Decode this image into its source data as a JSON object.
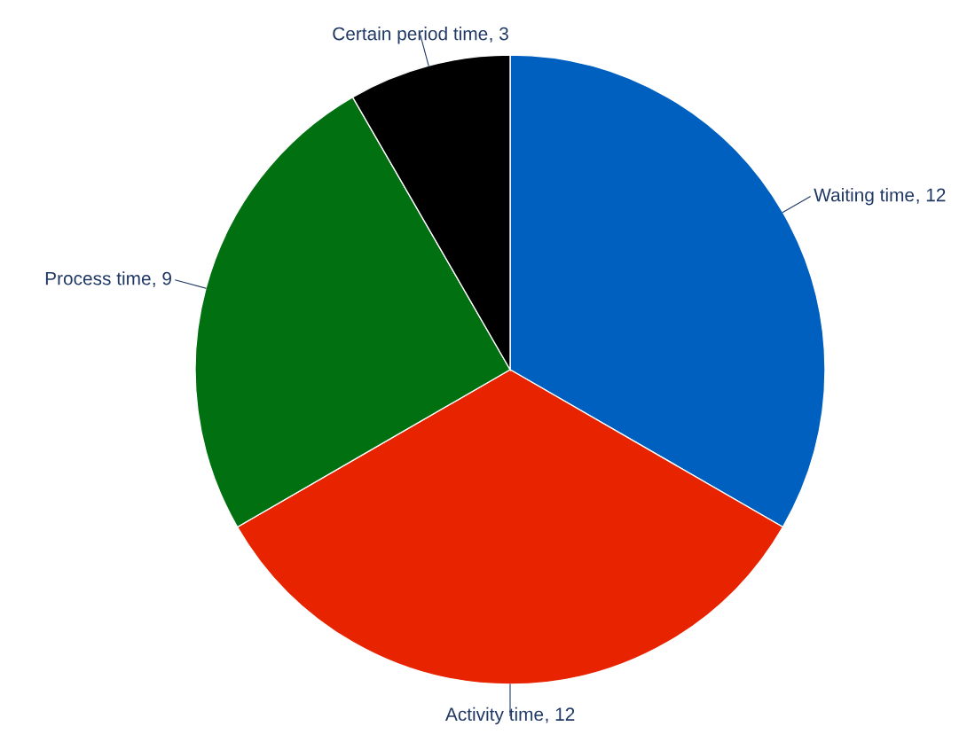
{
  "chart_data": {
    "type": "pie",
    "categories": [
      "Waiting time",
      "Activity time",
      "Process time",
      "Certain period time"
    ],
    "values": [
      12,
      12,
      9,
      3
    ],
    "colors": [
      "#0060c0",
      "#e82400",
      "#007010",
      "#000000"
    ],
    "value_labels": [
      ", 12",
      ", 12",
      ", 9",
      ", 3"
    ]
  }
}
